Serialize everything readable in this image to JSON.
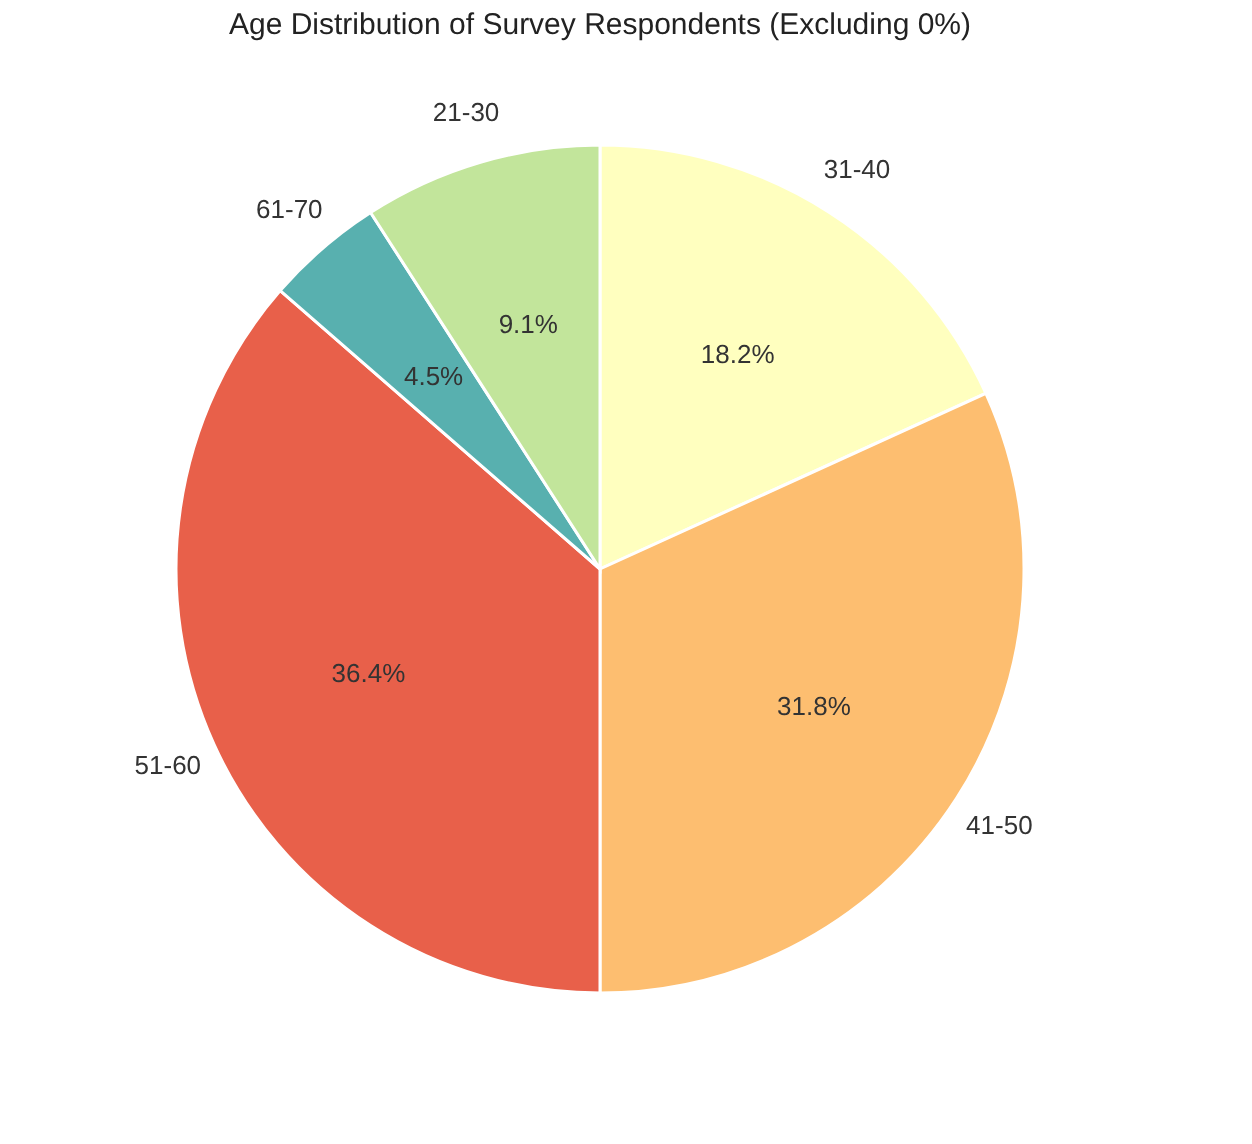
{
  "chart_data": {
    "type": "pie",
    "title": "Age Distribution of Survey Respondents (Excluding 0%)",
    "categories": [
      "31-40",
      "41-50",
      "51-60",
      "61-70",
      "21-30"
    ],
    "values": [
      18.2,
      31.8,
      36.4,
      4.5,
      9.1
    ],
    "value_labels": [
      "18.2%",
      "31.8%",
      "36.4%",
      "4.5%",
      "9.1%"
    ],
    "colors": [
      "#ffffbf",
      "#fdbe70",
      "#e8604a",
      "#58b0af",
      "#c2e59b"
    ],
    "legend": false
  }
}
